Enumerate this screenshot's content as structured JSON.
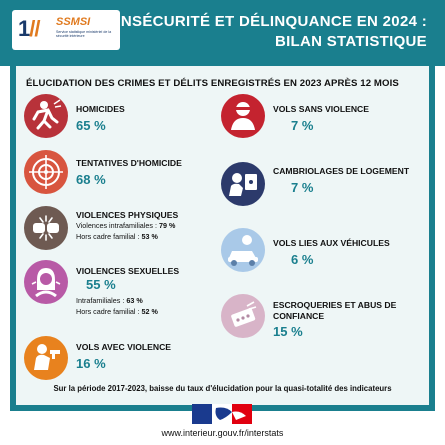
{
  "header": {
    "logo_mark": "1",
    "logo_mark_slash": "//",
    "logo_name": "SSMSI",
    "logo_subtitle": "Service statistique ministériel de la sécurité intérieure",
    "title_line1": "INSÉCURITÉ ET DÉLINQUANCE EN 2024 :",
    "title_line2": "BILAN STATISTIQUE"
  },
  "section_title": "ÉLUCIDATION DES CRIMES ET DÉLITS ENREGISTRÉS EN 2023 APRÈS  12 MOIS",
  "left_items": [
    {
      "label": "HOMICIDES",
      "value": "65 %",
      "icon": "homicide-figure-icon",
      "color": "#b8323a"
    },
    {
      "label": "TENTATIVES D'HOMICIDE",
      "value": "68 %",
      "icon": "crosshair-target-icon",
      "color": "#d8553f"
    },
    {
      "label": "VIOLENCES PHYSIQUES",
      "icon": "fist-impact-icon",
      "color": "#6e5a52",
      "details": [
        {
          "text": "Violences intrafamiliales : ",
          "pct": "79 %"
        },
        {
          "text": "Hors cadre familial : ",
          "pct": "53 %"
        }
      ]
    },
    {
      "label": "VIOLENCES SEXUELLES",
      "value": "55 %",
      "icon": "victim-woman-icon",
      "color": "#b85aa6",
      "details": [
        {
          "text": "Intrafamiliales : ",
          "pct": "63 %"
        },
        {
          "text": "Hors cadre familial : ",
          "pct": "52 %"
        }
      ]
    },
    {
      "label": "VOLS AVEC VIOLENCE",
      "value": "16 %",
      "icon": "armed-robbery-icon",
      "color": "#e8821e"
    }
  ],
  "right_items": [
    {
      "label": "VOLS SANS VIOLENCE",
      "value": "7 %",
      "icon": "pickpocket-icon",
      "color": "#c4232f"
    },
    {
      "label": "CAMBRIOLAGES DE LOGEMENT",
      "value": "7 %",
      "icon": "burglar-icon",
      "color": "#2c3a6b"
    },
    {
      "label": "VOLS LIES AUX VÉHICULES",
      "value": "6 %",
      "icon": "car-thief-icon",
      "color": "#a9c9e8"
    },
    {
      "label_line1": "ESCROQUERIES ET ABUS DE",
      "label_line2": "CONFIANCE",
      "value": "15 %",
      "icon": "phone-scam-icon",
      "color": "#d8b4c8"
    }
  ],
  "footnote": "Sur la période 2017-2023, baisse du taux d'élucidation pour la quasi-totalité des indicateurs",
  "footer": {
    "marianne_icon": "marianne-flag-icon",
    "url": "www.interieur.gouv.fr/interstats"
  }
}
